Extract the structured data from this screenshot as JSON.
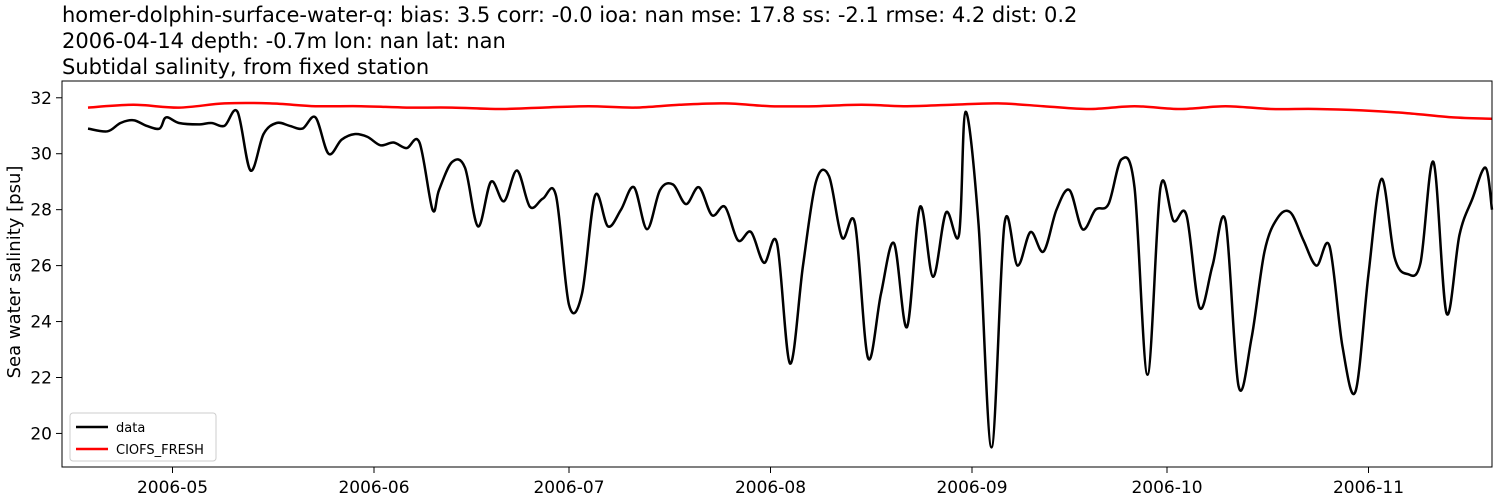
{
  "chart_data": {
    "type": "line",
    "title_lines": [
      "homer-dolphin-surface-water-q: bias: 3.5  corr: -0.0  ioa: nan  mse: 17.8  ss: -2.1  rmse: 4.2  dist: 0.2",
      "2006-04-14 depth: -0.7m lon: nan lat: nan",
      "Subtidal salinity, from fixed station"
    ],
    "ylabel": "Sea water salinity [psu]",
    "xlabel": "",
    "xlim": [
      "2006-04-14",
      "2006-11-20"
    ],
    "ylim": [
      18.8,
      32.6
    ],
    "xticks": [
      "2006-05-01",
      "2006-06-01",
      "2006-07-01",
      "2006-08-01",
      "2006-09-01",
      "2006-10-01",
      "2006-11-01"
    ],
    "xtick_labels": [
      "2006-05",
      "2006-06",
      "2006-07",
      "2006-08",
      "2006-09",
      "2006-10",
      "2006-11"
    ],
    "yticks": [
      20,
      22,
      24,
      26,
      28,
      30,
      32
    ],
    "ytick_labels": [
      "20",
      "22",
      "24",
      "26",
      "28",
      "30",
      "32"
    ],
    "grid": false,
    "legend_position": "lower-left",
    "series": [
      {
        "name": "data",
        "color": "#000000",
        "points": [
          [
            "2006-04-18",
            30.9
          ],
          [
            "2006-04-21",
            30.8
          ],
          [
            "2006-04-23",
            31.1
          ],
          [
            "2006-04-25",
            31.2
          ],
          [
            "2006-04-27",
            31.0
          ],
          [
            "2006-04-29",
            30.9
          ],
          [
            "2006-04-30",
            31.3
          ],
          [
            "2006-05-02",
            31.1
          ],
          [
            "2006-05-05",
            31.05
          ],
          [
            "2006-05-07",
            31.1
          ],
          [
            "2006-05-09",
            31.0
          ],
          [
            "2006-05-11",
            31.5
          ],
          [
            "2006-05-13",
            29.4
          ],
          [
            "2006-05-15",
            30.7
          ],
          [
            "2006-05-17",
            31.1
          ],
          [
            "2006-05-19",
            31.0
          ],
          [
            "2006-05-21",
            30.9
          ],
          [
            "2006-05-23",
            31.3
          ],
          [
            "2006-05-25",
            30.0
          ],
          [
            "2006-05-27",
            30.5
          ],
          [
            "2006-05-29",
            30.7
          ],
          [
            "2006-05-31",
            30.6
          ],
          [
            "2006-06-02",
            30.3
          ],
          [
            "2006-06-04",
            30.4
          ],
          [
            "2006-06-06",
            30.2
          ],
          [
            "2006-06-08",
            30.4
          ],
          [
            "2006-06-10",
            28.0
          ],
          [
            "2006-06-11",
            28.7
          ],
          [
            "2006-06-13",
            29.7
          ],
          [
            "2006-06-15",
            29.5
          ],
          [
            "2006-06-17",
            27.4
          ],
          [
            "2006-06-19",
            29.0
          ],
          [
            "2006-06-21",
            28.3
          ],
          [
            "2006-06-23",
            29.4
          ],
          [
            "2006-06-25",
            28.1
          ],
          [
            "2006-06-27",
            28.4
          ],
          [
            "2006-06-29",
            28.5
          ],
          [
            "2006-07-01",
            24.6
          ],
          [
            "2006-07-03",
            25.0
          ],
          [
            "2006-07-05",
            28.5
          ],
          [
            "2006-07-07",
            27.4
          ],
          [
            "2006-07-09",
            28.0
          ],
          [
            "2006-07-11",
            28.8
          ],
          [
            "2006-07-13",
            27.3
          ],
          [
            "2006-07-15",
            28.7
          ],
          [
            "2006-07-17",
            28.9
          ],
          [
            "2006-07-19",
            28.2
          ],
          [
            "2006-07-21",
            28.8
          ],
          [
            "2006-07-23",
            27.8
          ],
          [
            "2006-07-25",
            28.1
          ],
          [
            "2006-07-27",
            26.9
          ],
          [
            "2006-07-29",
            27.2
          ],
          [
            "2006-07-31",
            26.1
          ],
          [
            "2006-08-02",
            26.8
          ],
          [
            "2006-08-04",
            22.5
          ],
          [
            "2006-08-06",
            26.0
          ],
          [
            "2006-08-08",
            29.0
          ],
          [
            "2006-08-10",
            29.2
          ],
          [
            "2006-08-12",
            27.0
          ],
          [
            "2006-08-14",
            27.5
          ],
          [
            "2006-08-16",
            22.7
          ],
          [
            "2006-08-18",
            25.0
          ],
          [
            "2006-08-20",
            26.8
          ],
          [
            "2006-08-22",
            23.8
          ],
          [
            "2006-08-24",
            28.1
          ],
          [
            "2006-08-26",
            25.6
          ],
          [
            "2006-08-28",
            27.9
          ],
          [
            "2006-08-30",
            27.1
          ],
          [
            "2006-08-31",
            31.5
          ],
          [
            "2006-09-02",
            27.5
          ],
          [
            "2006-09-04",
            19.5
          ],
          [
            "2006-09-06",
            27.5
          ],
          [
            "2006-09-08",
            26.0
          ],
          [
            "2006-09-10",
            27.2
          ],
          [
            "2006-09-12",
            26.5
          ],
          [
            "2006-09-14",
            28.0
          ],
          [
            "2006-09-16",
            28.7
          ],
          [
            "2006-09-18",
            27.3
          ],
          [
            "2006-09-20",
            28.0
          ],
          [
            "2006-09-22",
            28.2
          ],
          [
            "2006-09-24",
            29.8
          ],
          [
            "2006-09-26",
            28.8
          ],
          [
            "2006-09-28",
            22.1
          ],
          [
            "2006-09-30",
            28.8
          ],
          [
            "2006-10-02",
            27.6
          ],
          [
            "2006-10-04",
            27.8
          ],
          [
            "2006-10-06",
            24.5
          ],
          [
            "2006-10-08",
            26.0
          ],
          [
            "2006-10-10",
            27.6
          ],
          [
            "2006-10-12",
            21.7
          ],
          [
            "2006-10-14",
            23.4
          ],
          [
            "2006-10-16",
            26.5
          ],
          [
            "2006-10-18",
            27.7
          ],
          [
            "2006-10-20",
            27.9
          ],
          [
            "2006-10-22",
            26.9
          ],
          [
            "2006-10-24",
            26.0
          ],
          [
            "2006-10-26",
            26.7
          ],
          [
            "2006-10-28",
            23.1
          ],
          [
            "2006-10-30",
            21.5
          ],
          [
            "2006-11-01",
            25.7
          ],
          [
            "2006-11-03",
            29.1
          ],
          [
            "2006-11-05",
            26.3
          ],
          [
            "2006-11-07",
            25.7
          ],
          [
            "2006-11-09",
            26.1
          ],
          [
            "2006-11-11",
            29.7
          ],
          [
            "2006-11-13",
            24.3
          ],
          [
            "2006-11-15",
            27.1
          ],
          [
            "2006-11-17",
            28.4
          ],
          [
            "2006-11-19",
            29.5
          ],
          [
            "2006-11-20",
            28.0
          ]
        ]
      },
      {
        "name": "CIOFS_FRESH",
        "color": "#ff0000",
        "points": [
          [
            "2006-04-18",
            31.65
          ],
          [
            "2006-04-25",
            31.75
          ],
          [
            "2006-05-02",
            31.65
          ],
          [
            "2006-05-09",
            31.8
          ],
          [
            "2006-05-16",
            31.8
          ],
          [
            "2006-05-23",
            31.7
          ],
          [
            "2006-05-30",
            31.7
          ],
          [
            "2006-06-06",
            31.65
          ],
          [
            "2006-06-13",
            31.65
          ],
          [
            "2006-06-20",
            31.6
          ],
          [
            "2006-06-27",
            31.65
          ],
          [
            "2006-07-04",
            31.7
          ],
          [
            "2006-07-11",
            31.65
          ],
          [
            "2006-07-18",
            31.75
          ],
          [
            "2006-07-25",
            31.8
          ],
          [
            "2006-08-01",
            31.7
          ],
          [
            "2006-08-08",
            31.7
          ],
          [
            "2006-08-15",
            31.75
          ],
          [
            "2006-08-22",
            31.7
          ],
          [
            "2006-08-29",
            31.75
          ],
          [
            "2006-09-05",
            31.8
          ],
          [
            "2006-09-12",
            31.7
          ],
          [
            "2006-09-19",
            31.6
          ],
          [
            "2006-09-26",
            31.7
          ],
          [
            "2006-10-03",
            31.6
          ],
          [
            "2006-10-10",
            31.7
          ],
          [
            "2006-10-17",
            31.6
          ],
          [
            "2006-10-24",
            31.6
          ],
          [
            "2006-10-31",
            31.55
          ],
          [
            "2006-11-07",
            31.45
          ],
          [
            "2006-11-14",
            31.3
          ],
          [
            "2006-11-20",
            31.25
          ]
        ]
      }
    ]
  }
}
